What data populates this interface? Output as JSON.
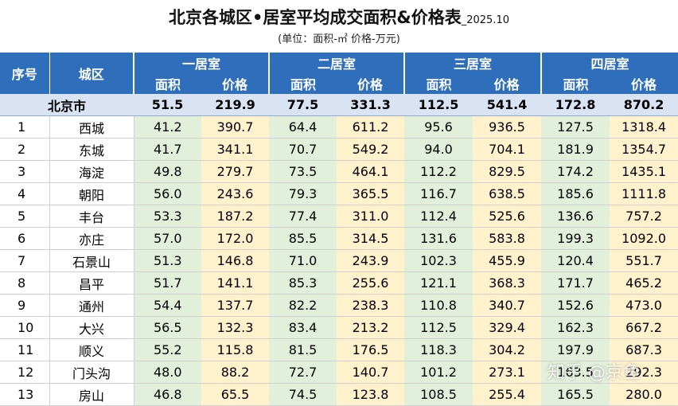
{
  "header": {
    "title": "北京各城区•居室平均成交面积&价格表",
    "date": "_2025.10",
    "subtitle": "(单位：面积-㎡ 价格-万元)"
  },
  "columns": {
    "index": "序号",
    "district": "城区",
    "groups": [
      {
        "name": "一居室",
        "sub": [
          "面积",
          "价格"
        ]
      },
      {
        "name": "二居室",
        "sub": [
          "面积",
          "价格"
        ]
      },
      {
        "name": "三居室",
        "sub": [
          "面积",
          "价格"
        ]
      },
      {
        "name": "四居室",
        "sub": [
          "面积",
          "价格"
        ]
      }
    ]
  },
  "summary": {
    "name": "北京市",
    "values": [
      "51.5",
      "219.9",
      "77.5",
      "331.3",
      "112.5",
      "541.4",
      "172.8",
      "870.2"
    ]
  },
  "rows": [
    [
      "1",
      "西城",
      "41.2",
      "390.7",
      "64.4",
      "611.2",
      "95.6",
      "936.5",
      "127.5",
      "1318.4"
    ],
    [
      "2",
      "东城",
      "41.7",
      "341.1",
      "70.7",
      "549.2",
      "94.0",
      "704.1",
      "181.9",
      "1354.7"
    ],
    [
      "3",
      "海淀",
      "49.8",
      "279.7",
      "73.5",
      "464.1",
      "112.2",
      "829.5",
      "174.2",
      "1435.1"
    ],
    [
      "4",
      "朝阳",
      "56.0",
      "243.6",
      "79.3",
      "365.5",
      "116.7",
      "638.5",
      "185.6",
      "1111.8"
    ],
    [
      "5",
      "丰台",
      "53.3",
      "187.2",
      "77.4",
      "311.0",
      "112.4",
      "525.6",
      "136.6",
      "757.2"
    ],
    [
      "6",
      "亦庄",
      "57.0",
      "172.0",
      "85.5",
      "314.5",
      "131.6",
      "583.8",
      "199.3",
      "1092.0"
    ],
    [
      "7",
      "石景山",
      "51.3",
      "146.8",
      "71.0",
      "243.9",
      "102.3",
      "455.9",
      "120.4",
      "551.7"
    ],
    [
      "8",
      "昌平",
      "51.7",
      "141.1",
      "85.3",
      "255.6",
      "121.1",
      "368.3",
      "171.7",
      "465.2"
    ],
    [
      "9",
      "通州",
      "54.4",
      "137.7",
      "82.2",
      "238.3",
      "110.8",
      "340.7",
      "152.6",
      "473.0"
    ],
    [
      "10",
      "大兴",
      "56.5",
      "132.3",
      "83.4",
      "213.2",
      "112.5",
      "329.4",
      "162.3",
      "667.2"
    ],
    [
      "11",
      "顺义",
      "55.2",
      "115.8",
      "81.5",
      "176.5",
      "118.3",
      "304.2",
      "197.9",
      "687.3"
    ],
    [
      "12",
      "门头沟",
      "48.0",
      "88.2",
      "72.7",
      "140.7",
      "101.2",
      "273.1",
      "163.5",
      "292.3"
    ],
    [
      "13",
      "房山",
      "46.8",
      "65.5",
      "74.5",
      "123.8",
      "108.5",
      "255.4",
      "165.5",
      "280.0"
    ]
  ],
  "watermark": "知乎 @京鱼"
}
